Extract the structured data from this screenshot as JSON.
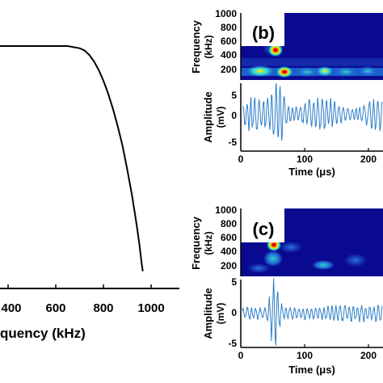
{
  "chart_data": [
    {
      "panel": "a",
      "type": "line",
      "xlabel": "quency (kHz)",
      "xticks": [
        "400",
        "600",
        "800",
        "1000"
      ],
      "xlim": [
        300,
        1050
      ],
      "series": [
        {
          "x": [
            300,
            400,
            500,
            600,
            650,
            700,
            720,
            740,
            760,
            780,
            800,
            820,
            840,
            860,
            880,
            900,
            920,
            940,
            950,
            960,
            965
          ],
          "y": [
            1.0,
            1.0,
            1.0,
            1.0,
            1.0,
            0.99,
            0.98,
            0.96,
            0.93,
            0.89,
            0.84,
            0.78,
            0.71,
            0.63,
            0.54,
            0.43,
            0.31,
            0.17,
            0.09,
            0.0,
            -0.04
          ]
        }
      ]
    },
    {
      "panel": "b",
      "type": "heatmap",
      "panel_label": "(b)",
      "ylabel": "Frequency",
      "ylabel2": "(kHz)",
      "yticks": [
        "1000",
        "800",
        "600",
        "400",
        "200"
      ],
      "xlim": [
        0,
        250
      ],
      "hot_spots": [
        {
          "time_us": 50,
          "freq_khz": 480,
          "level": "high"
        },
        {
          "time_us": 62,
          "freq_khz": 120,
          "level": "high"
        },
        {
          "time_us": 125,
          "freq_khz": 120,
          "level": "medium"
        },
        {
          "time_us": 160,
          "freq_khz": 120,
          "level": "medium"
        }
      ]
    },
    {
      "panel": "b",
      "type": "line",
      "ylabel": "Amplitude",
      "ylabel2": "(mV)",
      "yticks": [
        "5",
        "0",
        "-5"
      ],
      "ylim": [
        -7,
        7
      ],
      "xlabel": "Time (μs)",
      "xticks": [
        "0",
        "100",
        "200"
      ],
      "xlim": [
        0,
        250
      ],
      "signal": "broadband noise, burst near 60 μs"
    },
    {
      "panel": "c",
      "type": "heatmap",
      "panel_label": "(c)",
      "ylabel": "Frequency",
      "ylabel2": "(kHz)",
      "yticks": [
        "1000",
        "800",
        "600",
        "400",
        "200"
      ],
      "xlim": [
        0,
        250
      ],
      "hot_spots": [
        {
          "time_us": 50,
          "freq_khz": 480,
          "level": "high"
        },
        {
          "time_us": 48,
          "freq_khz": 300,
          "level": "medium"
        },
        {
          "time_us": 145,
          "freq_khz": 180,
          "level": "low"
        }
      ]
    },
    {
      "panel": "c",
      "type": "line",
      "ylabel": "Amplitude",
      "ylabel2": "(mV)",
      "yticks": [
        "5",
        "0",
        "-5"
      ],
      "ylim": [
        -5.5,
        5.5
      ],
      "xlabel": "Time (μs)",
      "xticks": [
        "0",
        "100",
        "200"
      ],
      "xlim": [
        0,
        250
      ],
      "signal": "decaying burst near 50 μs"
    }
  ]
}
